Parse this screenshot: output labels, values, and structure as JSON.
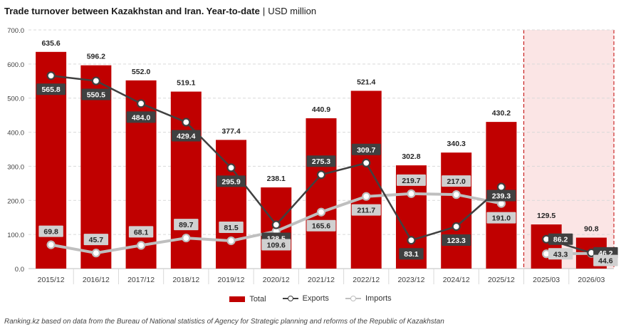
{
  "title": {
    "main": "Trade turnover between Kazakhstan and Iran. Year-to-date",
    "separator": "|",
    "unit": "USD million"
  },
  "legend": {
    "total": "Total",
    "exports": "Exports",
    "imports": "Imports"
  },
  "source": "Ranking.kz based on data from the Bureau of National statistics of Agency for Strategic planning and reforms of the Republic of Kazakhstan",
  "colors": {
    "total": "#c00000",
    "exports": "#404040",
    "imports": "#bfbfbf",
    "highlight_band": "#fbe5e5",
    "highlight_border": "#c00000"
  },
  "chart_data": {
    "type": "bar",
    "title": "Trade turnover between Kazakhstan and Iran. Year-to-date",
    "ylabel": "",
    "xlabel": "",
    "ylim": [
      0,
      700
    ],
    "yticks": [
      "0.0",
      "100.0",
      "200.0",
      "300.0",
      "400.0",
      "500.0",
      "600.0",
      "700.0"
    ],
    "grid": true,
    "legend_position": "bottom",
    "categories": [
      "2015/12",
      "2016/12",
      "2017/12",
      "2018/12",
      "2019/12",
      "2020/12",
      "2021/12",
      "2022/12",
      "2023/12",
      "2024/12",
      "2025/12",
      "2025/03",
      "2026/03"
    ],
    "highlighted_categories": [
      "2025/03",
      "2026/03"
    ],
    "series": [
      {
        "name": "Total",
        "type": "bar",
        "values": [
          635.6,
          596.2,
          552.0,
          519.1,
          377.4,
          238.1,
          440.9,
          521.4,
          302.8,
          340.3,
          430.2,
          129.5,
          90.8
        ],
        "labels": [
          "635.6",
          "596.2",
          "552.0",
          "519.1",
          "377.4",
          "238.1",
          "440.9",
          "521.4",
          "302.8",
          "340.3",
          "430.2",
          "129.5",
          "90.8"
        ]
      },
      {
        "name": "Exports",
        "type": "line",
        "values": [
          565.8,
          550.5,
          484.0,
          429.4,
          295.9,
          128.5,
          275.3,
          309.7,
          83.1,
          123.3,
          239.3,
          86.2,
          46.2
        ],
        "labels": [
          "565.8",
          "550.5",
          "484.0",
          "429.4",
          "295.9",
          "128.5",
          "275.3",
          "309.7",
          "83.1",
          "123.3",
          "239.3",
          "86.2",
          "46.2"
        ]
      },
      {
        "name": "Imports",
        "type": "line",
        "values": [
          69.8,
          45.7,
          68.1,
          89.7,
          81.5,
          109.6,
          165.6,
          211.7,
          219.7,
          217.0,
          191.0,
          43.3,
          44.6
        ],
        "labels": [
          "69.8",
          "45.7",
          "68.1",
          "89.7",
          "81.5",
          "109.6",
          "165.6",
          "211.7",
          "219.7",
          "217.0",
          "191.0",
          "43.3",
          "44.6"
        ]
      }
    ]
  }
}
